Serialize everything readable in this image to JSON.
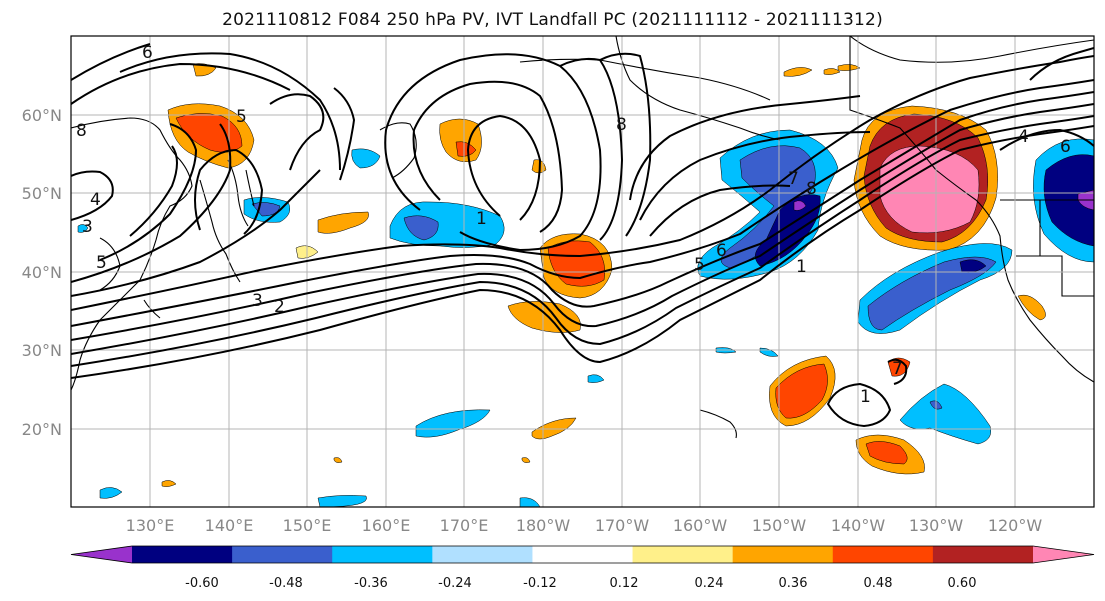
{
  "title": "2021110812 F084 250 hPa PV, IVT Landfall PC (2021111112 - 2021111312)",
  "lat_labels": [
    "60°N",
    "50°N",
    "40°N",
    "30°N",
    "20°N"
  ],
  "lon_labels": [
    "130°E",
    "140°E",
    "150°E",
    "160°E",
    "170°E",
    "180°W",
    "170°W",
    "160°W",
    "150°W",
    "140°W",
    "130°W",
    "120°W"
  ],
  "colorbar": {
    "colors": [
      "#9932cc",
      "#000080",
      "#3a5fcd",
      "#00bfff",
      "#b0e0ff",
      "#ffffff",
      "#fff08a",
      "#ffa500",
      "#ff4500",
      "#b22222",
      "#ff86b4"
    ],
    "tick_labels": [
      "-0.60",
      "-0.48",
      "-0.36",
      "-0.24",
      "-0.12",
      "0.12",
      "0.24",
      "0.36",
      "0.48",
      "0.60"
    ]
  },
  "contour_labels": [
    "6",
    "5",
    "8",
    "4",
    "3",
    "5",
    "3",
    "2",
    "1",
    "8",
    "7",
    "8",
    "6",
    "5",
    "1",
    "1",
    "4",
    "6",
    "7"
  ]
}
